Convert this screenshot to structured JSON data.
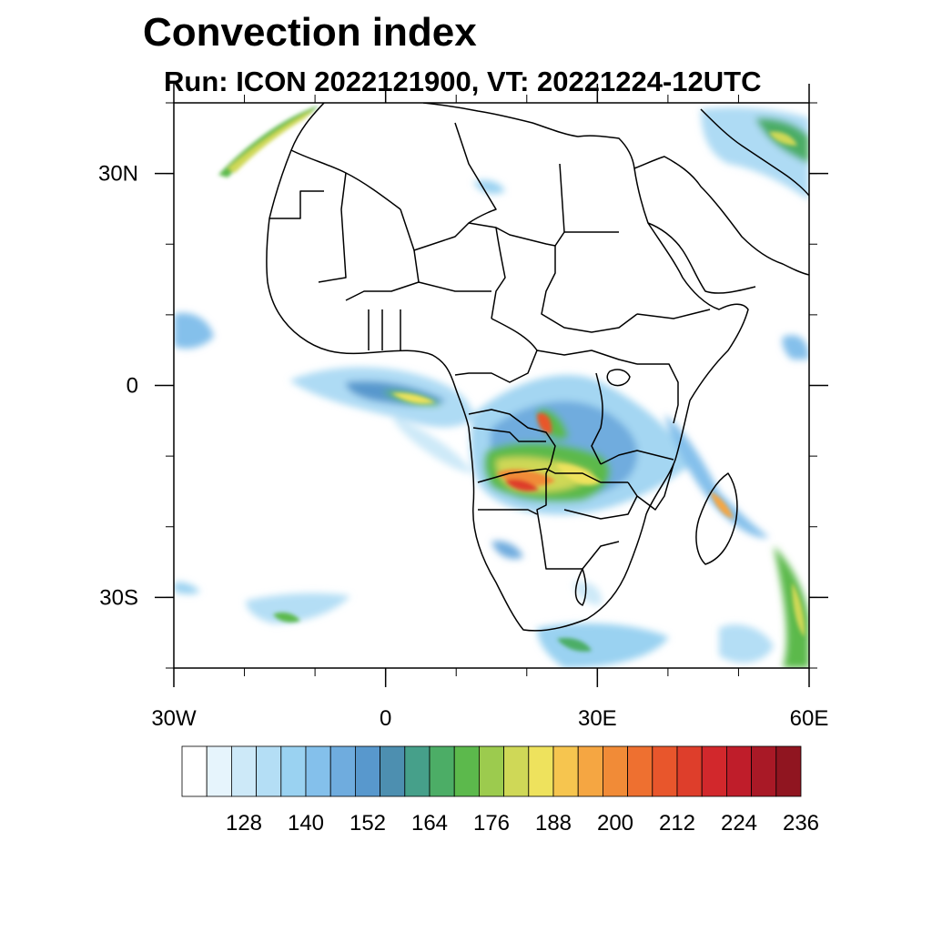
{
  "title": "Convection index",
  "subtitle": "Run: ICON 2022121900,  VT: 20221224-12UTC",
  "map": {
    "lon_range": [
      -30,
      60
    ],
    "lat_range": [
      -40,
      40
    ],
    "x_ticks": [
      {
        "lon": -30,
        "label": "30W"
      },
      {
        "lon": 0,
        "label": "0"
      },
      {
        "lon": 30,
        "label": "30E"
      },
      {
        "lon": 60,
        "label": "60E"
      }
    ],
    "y_ticks": [
      {
        "lat": 30,
        "label": "30N"
      },
      {
        "lat": 0,
        "label": "0"
      },
      {
        "lat": -30,
        "label": "30S"
      }
    ]
  },
  "colorbar": {
    "colors": [
      "#ffffff",
      "#e6f4fc",
      "#cde9f8",
      "#b4def5",
      "#9ad2f1",
      "#84c0eb",
      "#6facde",
      "#5898cd",
      "#4d8fb0",
      "#46a08a",
      "#4cad66",
      "#5cb94c",
      "#9ccb4e",
      "#cfd857",
      "#eee25d",
      "#f6c54f",
      "#f5a642",
      "#f18b37",
      "#ee7030",
      "#e8562c",
      "#de3e2b",
      "#d2282c",
      "#bf1d2a",
      "#a91926",
      "#901520"
    ],
    "labels": [
      "128",
      "140",
      "152",
      "164",
      "176",
      "188",
      "200",
      "212",
      "224",
      "236"
    ]
  }
}
